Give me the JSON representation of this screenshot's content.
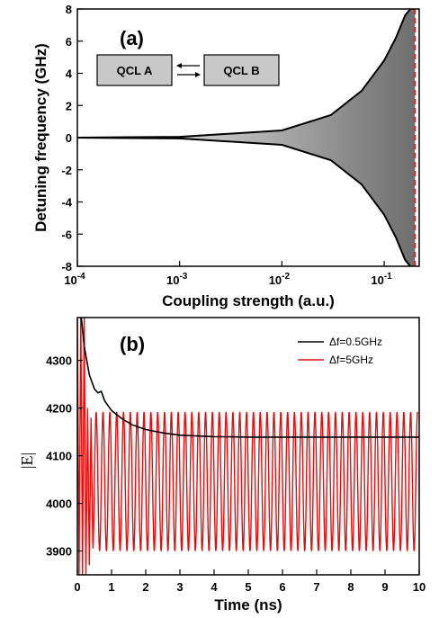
{
  "chart_data": [
    {
      "type": "area",
      "panel_label": "(a)",
      "xlabel": "Coupling strength (a.u.)",
      "ylabel": "Detuning frequency (GHz)",
      "xscale": "log",
      "xlim": [
        0.0001,
        0.22
      ],
      "ylim": [
        -8,
        8
      ],
      "x_tick_labels": [
        {
          "base": "10",
          "exp": "-4",
          "value": 0.0001
        },
        {
          "base": "10",
          "exp": "-3",
          "value": 0.001
        },
        {
          "base": "10",
          "exp": "-2",
          "value": 0.01
        },
        {
          "base": "10",
          "exp": "-1",
          "value": 0.1
        }
      ],
      "y_ticks": [
        -8,
        -6,
        -4,
        -2,
        0,
        2,
        4,
        6,
        8
      ],
      "boundary": {
        "x": [
          0.0001,
          0.001,
          0.01,
          0.03,
          0.06,
          0.1,
          0.13,
          0.16,
          0.18
        ],
        "upper": [
          0.0,
          0.05,
          0.45,
          1.4,
          2.9,
          4.8,
          6.2,
          7.6,
          8.0
        ],
        "lower": [
          0.0,
          -0.05,
          -0.45,
          -1.4,
          -2.9,
          -4.8,
          -6.2,
          -7.6,
          -8.0
        ]
      },
      "dashed_line_x": 0.2,
      "dashed_line_color": "#e02020",
      "fill_gradient": [
        "#ffffff",
        "#6e6e6e"
      ],
      "schematic": {
        "box_a": "QCL A",
        "box_b": "QCL B",
        "box_color": "#c8c8c8"
      }
    },
    {
      "type": "line",
      "panel_label": "(b)",
      "xlabel": "Time (ns)",
      "ylabel": "|E|",
      "xlim": [
        0,
        10
      ],
      "ylim": [
        3850,
        4390
      ],
      "x_ticks": [
        0,
        1,
        2,
        3,
        4,
        5,
        6,
        7,
        8,
        9,
        10
      ],
      "y_ticks": [
        3900,
        4000,
        4100,
        4200,
        4300
      ],
      "legend_position": "top-right",
      "series": [
        {
          "name": "Δf=0.5GHz",
          "color": "#000000",
          "x": [
            0.0,
            0.1,
            0.2,
            0.35,
            0.5,
            0.6,
            0.7,
            0.8,
            1.0,
            1.3,
            1.6,
            2.0,
            2.5,
            3.0,
            4.0,
            5.0,
            6.0,
            7.0,
            8.0,
            9.0,
            10.0
          ],
          "values": [
            4400,
            4400,
            4330,
            4270,
            4240,
            4232,
            4235,
            4215,
            4195,
            4178,
            4165,
            4155,
            4148,
            4143,
            4140,
            4139,
            4139,
            4139,
            4139,
            4139,
            4139
          ]
        },
        {
          "name": "Δf=5GHz",
          "color": "#e01010",
          "oscillation": {
            "period_ns": 0.2,
            "center": 4046,
            "amplitude": 146,
            "start_ns": 0.45,
            "end_ns": 9.95
          },
          "transient_x": [
            0.0,
            0.05,
            0.1,
            0.15,
            0.2,
            0.25,
            0.3,
            0.35,
            0.4,
            0.45
          ],
          "transient_values": [
            4400,
            3850,
            4400,
            3850,
            4400,
            3850,
            4200,
            3870,
            4180,
            3920
          ]
        }
      ]
    }
  ]
}
